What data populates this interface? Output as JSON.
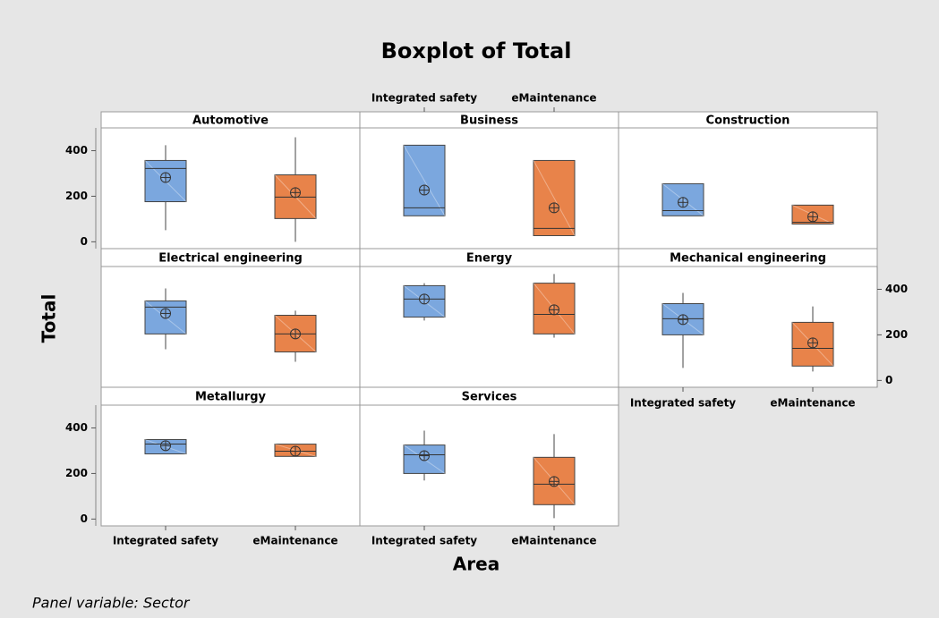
{
  "chart_data": {
    "type": "box",
    "title": "Boxplot of Total",
    "xlabel": "Area",
    "ylabel": "Total",
    "footnote": "Panel variable: Sector",
    "categories": [
      "Integrated safety",
      "eMaintenance"
    ],
    "colors": [
      "#7ba7de",
      "#e8834a"
    ],
    "ylim": [
      -30,
      500
    ],
    "yticks": [
      0,
      200,
      400
    ],
    "panels": [
      {
        "name": "Automotive",
        "boxes": [
          {
            "min": 51,
            "q1": 176,
            "median": 322,
            "q3": 357,
            "max": 424,
            "mean": 282
          },
          {
            "min": 0,
            "q1": 102,
            "median": 196,
            "q3": 294,
            "max": 459,
            "mean": 216
          }
        ]
      },
      {
        "name": "Business",
        "boxes": [
          {
            "min": 114,
            "q1": 114,
            "median": 149,
            "q3": 424,
            "max": 424,
            "mean": 227
          },
          {
            "min": 27,
            "q1": 27,
            "median": 59,
            "q3": 357,
            "max": 357,
            "mean": 149
          }
        ]
      },
      {
        "name": "Construction",
        "boxes": [
          {
            "min": 114,
            "q1": 114,
            "median": 137,
            "q3": 255,
            "max": 255,
            "mean": 173
          },
          {
            "min": 78,
            "q1": 78,
            "median": 86,
            "q3": 161,
            "max": 161,
            "mean": 110
          }
        ]
      },
      {
        "name": "Electrical engineering",
        "boxes": [
          {
            "min": 137,
            "q1": 204,
            "median": 322,
            "q3": 349,
            "max": 404,
            "mean": 294
          },
          {
            "min": 82,
            "q1": 125,
            "median": 204,
            "q3": 286,
            "max": 306,
            "mean": 204
          }
        ]
      },
      {
        "name": "Energy",
        "boxes": [
          {
            "min": 263,
            "q1": 278,
            "median": 357,
            "q3": 416,
            "max": 427,
            "mean": 357
          },
          {
            "min": 188,
            "q1": 204,
            "median": 290,
            "q3": 427,
            "max": 467,
            "mean": 310
          }
        ]
      },
      {
        "name": "Mechanical engineering",
        "boxes": [
          {
            "min": 55,
            "q1": 200,
            "median": 271,
            "q3": 337,
            "max": 384,
            "mean": 267
          },
          {
            "min": 39,
            "q1": 63,
            "median": 141,
            "q3": 255,
            "max": 325,
            "mean": 165
          }
        ]
      },
      {
        "name": "Metallurgy",
        "boxes": [
          {
            "min": 286,
            "q1": 286,
            "median": 329,
            "q3": 349,
            "max": 349,
            "mean": 322
          },
          {
            "min": 275,
            "q1": 275,
            "median": 298,
            "q3": 329,
            "max": 329,
            "mean": 298
          }
        ]
      },
      {
        "name": "Services",
        "boxes": [
          {
            "min": 169,
            "q1": 200,
            "median": 282,
            "q3": 325,
            "max": 388,
            "mean": 278
          },
          {
            "min": 4,
            "q1": 63,
            "median": 153,
            "q3": 271,
            "max": 373,
            "mean": 165
          }
        ]
      }
    ]
  }
}
